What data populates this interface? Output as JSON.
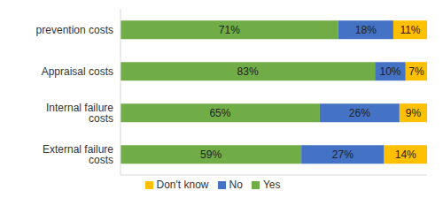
{
  "chart_data": {
    "type": "bar",
    "orientation": "horizontal",
    "stacked": true,
    "categories": [
      "prevention costs",
      "Appraisal costs",
      "Internal failure costs",
      "External failure costs"
    ],
    "series": [
      {
        "name": "Yes",
        "color": "#70ad47",
        "values": [
          71,
          83,
          65,
          59
        ],
        "value_labels": [
          "71%",
          "83%",
          "65%",
          "59%"
        ]
      },
      {
        "name": "No",
        "color": "#4472c4",
        "values": [
          18,
          10,
          26,
          27
        ],
        "value_labels": [
          "18%",
          "10%",
          "26%",
          "27%"
        ]
      },
      {
        "name": "Don't know",
        "color": "#ffc000",
        "values": [
          11,
          7,
          9,
          14
        ],
        "value_labels": [
          "11%",
          "7%",
          "9%",
          "14%"
        ]
      }
    ],
    "xlim": [
      0,
      100
    ],
    "data_labels": true,
    "tick_labels": "y",
    "legend": "bottom"
  }
}
